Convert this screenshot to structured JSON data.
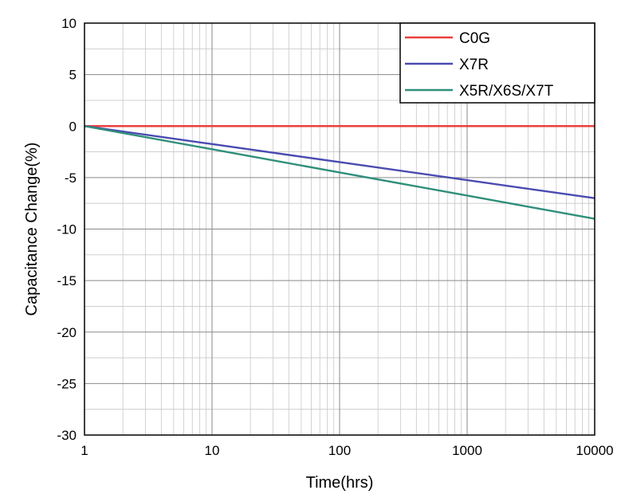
{
  "chart_data": {
    "type": "line",
    "xlabel": "Time(hrs)",
    "ylabel": "Capacitance Change(%)",
    "xscale": "log",
    "xlim": [
      1,
      10000
    ],
    "ylim": [
      -30,
      10
    ],
    "xticks": [
      1,
      10,
      100,
      1000,
      10000
    ],
    "xtick_labels": [
      "1",
      "10",
      "100",
      "1000",
      "10000"
    ],
    "yticks": [
      10,
      5,
      0,
      -5,
      -10,
      -15,
      -20,
      -25,
      -30
    ],
    "ytick_labels": [
      "10",
      "5",
      "0",
      "-5",
      "-10",
      "-15",
      "-20",
      "-25",
      "-30"
    ],
    "grid": true,
    "legend_position": "top-right",
    "series": [
      {
        "name": "C0G",
        "color": "#e8413c",
        "x": [
          1,
          10,
          100,
          1000,
          10000
        ],
        "y": [
          0,
          0,
          0,
          0,
          0
        ]
      },
      {
        "name": "X7R",
        "color": "#4a4bb0",
        "x": [
          1,
          10,
          100,
          1000,
          10000
        ],
        "y": [
          0,
          -1.75,
          -3.5,
          -5.25,
          -7
        ]
      },
      {
        "name": "X5R/X6S/X7T",
        "color": "#2f8f7a",
        "x": [
          1,
          10,
          100,
          1000,
          10000
        ],
        "y": [
          0,
          -2.25,
          -4.5,
          -6.75,
          -9
        ]
      }
    ]
  }
}
